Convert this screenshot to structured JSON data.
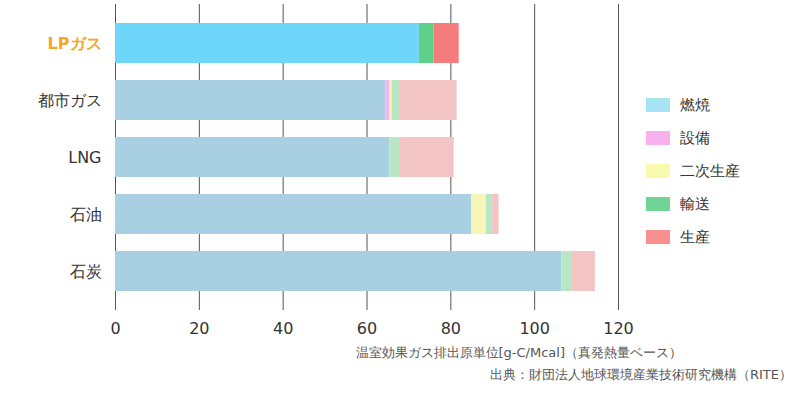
{
  "chart_data": {
    "type": "bar",
    "orientation": "horizontal",
    "stacked": true,
    "grid": true,
    "legend": "right",
    "x_label": "温室効果ガス排出原単位[g-C/Mcal]（真発熱量ベース）",
    "source": "出典：財団法人地球環境産業技術研究機構（RITE）",
    "categories": [
      "LPガス",
      "都市ガス",
      "LNG",
      "石油",
      "石炭"
    ],
    "xlim": [
      0,
      120
    ],
    "xticks": [
      0,
      20,
      40,
      60,
      80,
      100,
      120
    ],
    "series": [
      {
        "name": "燃焼",
        "color": "#a6e4f4",
        "colors": [
          "#6dd6f9",
          "#a9d0e2",
          "#a9d0e2",
          "#a9d0e2",
          "#a9d0e2"
        ],
        "values": [
          72.5,
          64.5,
          65.5,
          85,
          106.5
        ]
      },
      {
        "name": "設備",
        "color": "#f9b0f0",
        "colors": [
          "#f9b3ef",
          "#f9b3ef",
          "#f9b3ef",
          "#f9b3ef",
          "#f9b3ef"
        ],
        "values": [
          0,
          1.0,
          0,
          0,
          0
        ]
      },
      {
        "name": "二次生産",
        "color": "#fafaae",
        "colors": [
          "#f8f5b8",
          "#f8f5b8",
          "#f8f5b8",
          "#f8f5b8",
          "#f8f5b8"
        ],
        "values": [
          0,
          0.5,
          0,
          3.5,
          0
        ]
      },
      {
        "name": "輸送",
        "color": "#6fd494",
        "colors": [
          "#5fcf8a",
          "#b9e6c4",
          "#b9e6c4",
          "#b9e6c4",
          "#b9e6c4"
        ],
        "values": [
          3.5,
          2.0,
          2.5,
          1.5,
          2.5
        ]
      },
      {
        "name": "生産",
        "color": "#f89090",
        "colors": [
          "#f47c7c",
          "#f3c4c4",
          "#f3c4c4",
          "#f3c4c4",
          "#f3c4c4"
        ],
        "values": [
          6,
          13.5,
          12.8,
          1.5,
          5.5
        ]
      }
    ]
  }
}
